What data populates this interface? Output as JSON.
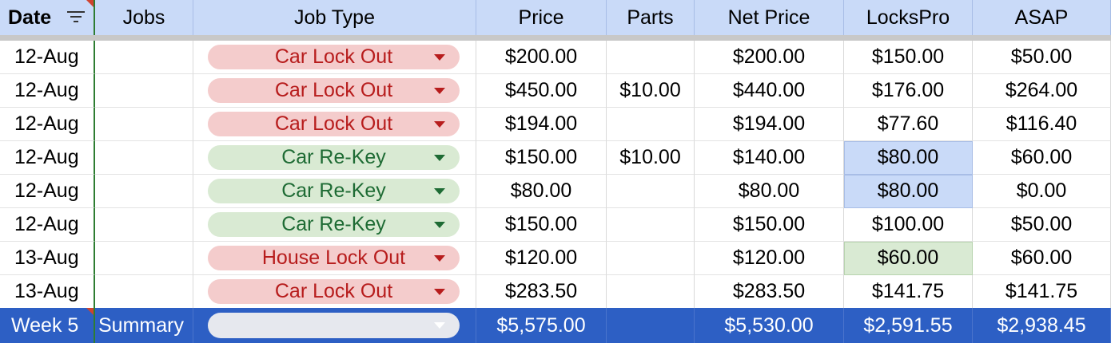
{
  "headers": [
    "Date",
    "Jobs",
    "Job Type",
    "Price",
    "Parts",
    "Net Price",
    "LocksPro",
    "ASAP"
  ],
  "rows": [
    {
      "date": "12-Aug",
      "jobs": "",
      "job_type": "Car Lock Out",
      "job_type_color": "red",
      "price": "$200.00",
      "parts": "",
      "net": "$200.00",
      "lockspro": "$150.00",
      "asap": "$50.00"
    },
    {
      "date": "12-Aug",
      "jobs": "",
      "job_type": "Car Lock Out",
      "job_type_color": "red",
      "price": "$450.00",
      "parts": "$10.00",
      "net": "$440.00",
      "lockspro": "$176.00",
      "asap": "$264.00"
    },
    {
      "date": "12-Aug",
      "jobs": "",
      "job_type": "Car Lock Out",
      "job_type_color": "red",
      "price": "$194.00",
      "parts": "",
      "net": "$194.00",
      "lockspro": "$77.60",
      "asap": "$116.40"
    },
    {
      "date": "12-Aug",
      "jobs": "",
      "job_type": "Car Re-Key",
      "job_type_color": "green",
      "price": "$150.00",
      "parts": "$10.00",
      "net": "$140.00",
      "lockspro": "$80.00",
      "lockspro_highlight": "blue",
      "asap": "$60.00"
    },
    {
      "date": "12-Aug",
      "jobs": "",
      "job_type": "Car Re-Key",
      "job_type_color": "green",
      "price": "$80.00",
      "parts": "",
      "net": "$80.00",
      "lockspro": "$80.00",
      "lockspro_highlight": "blue",
      "asap": "$0.00"
    },
    {
      "date": "12-Aug",
      "jobs": "",
      "job_type": "Car Re-Key",
      "job_type_color": "green",
      "price": "$150.00",
      "parts": "",
      "net": "$150.00",
      "lockspro": "$100.00",
      "asap": "$50.00"
    },
    {
      "date": "13-Aug",
      "jobs": "",
      "job_type": "House Lock Out",
      "job_type_color": "red",
      "price": "$120.00",
      "parts": "",
      "net": "$120.00",
      "lockspro": "$60.00",
      "lockspro_highlight": "green",
      "asap": "$60.00"
    },
    {
      "date": "13-Aug",
      "jobs": "",
      "job_type": "Car Lock Out",
      "job_type_color": "red",
      "price": "$283.50",
      "parts": "",
      "net": "$283.50",
      "lockspro": "$141.75",
      "asap": "$141.75"
    }
  ],
  "summary": {
    "date": "Week 5",
    "jobs": "Summary",
    "job_type": "",
    "price": "$5,575.00",
    "parts": "",
    "net": "$5,530.00",
    "lockspro": "$2,591.55",
    "asap": "$2,938.45"
  },
  "colors": {
    "header_bg": "#c9daf8",
    "summary_bg": "#2d5fc4",
    "chip_red_bg": "#f4cccc",
    "chip_red_text": "#b71c1c",
    "chip_green_bg": "#d9ead3",
    "chip_green_text": "#1e6b34",
    "freeze_line": "#2e7d32"
  },
  "icons": {
    "filter": "filter-icon",
    "dropdown": "chevron-down-icon",
    "comment": "comment-corner-marker"
  }
}
